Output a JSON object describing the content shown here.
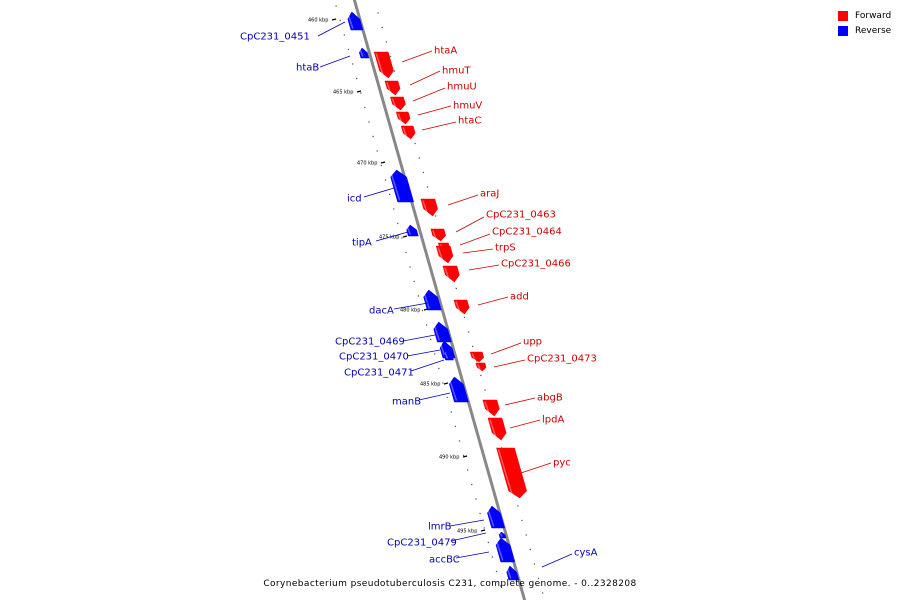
{
  "legend": [
    {
      "label": "Forward",
      "color": "#ff0000"
    },
    {
      "label": "Reverse",
      "color": "#0000ff"
    }
  ],
  "caption": "Corynebacterium pseudotuberculosis C231, complete genome. - 0..2328208",
  "colors": {
    "forward": "#ff0000",
    "reverse": "#0000ff",
    "forward_label": "#cc0000",
    "reverse_label": "#0000b3",
    "backbone": "#888888"
  },
  "ticks": [
    {
      "label": "460 kbp",
      "kbp": 460
    },
    {
      "label": "465 kbp",
      "kbp": 465
    },
    {
      "label": "470 kbp",
      "kbp": 470
    },
    {
      "label": "475 kbp",
      "kbp": 475
    },
    {
      "label": "480 kbp",
      "kbp": 480
    },
    {
      "label": "485 kbp",
      "kbp": 485
    },
    {
      "label": "490 kbp",
      "kbp": 490
    },
    {
      "label": "495 kbp",
      "kbp": 495
    }
  ],
  "genes": [
    {
      "name": "CpC231_0451",
      "strand": "reverse"
    },
    {
      "name": "htaB",
      "strand": "reverse"
    },
    {
      "name": "htaA",
      "strand": "forward"
    },
    {
      "name": "hmuT",
      "strand": "forward"
    },
    {
      "name": "hmuU",
      "strand": "forward"
    },
    {
      "name": "hmuV",
      "strand": "forward"
    },
    {
      "name": "htaC",
      "strand": "forward"
    },
    {
      "name": "icd",
      "strand": "reverse"
    },
    {
      "name": "araJ",
      "strand": "forward"
    },
    {
      "name": "CpC231_0463",
      "strand": "forward"
    },
    {
      "name": "CpC231_0464",
      "strand": "forward"
    },
    {
      "name": "tipA",
      "strand": "reverse"
    },
    {
      "name": "trpS",
      "strand": "forward"
    },
    {
      "name": "CpC231_0466",
      "strand": "forward"
    },
    {
      "name": "add",
      "strand": "forward"
    },
    {
      "name": "dacA",
      "strand": "reverse"
    },
    {
      "name": "CpC231_0469",
      "strand": "reverse"
    },
    {
      "name": "upp",
      "strand": "forward"
    },
    {
      "name": "CpC231_0470",
      "strand": "reverse"
    },
    {
      "name": "CpC231_0473",
      "strand": "forward"
    },
    {
      "name": "CpC231_0471",
      "strand": "reverse"
    },
    {
      "name": "manB",
      "strand": "reverse"
    },
    {
      "name": "abgB",
      "strand": "forward"
    },
    {
      "name": "lpdA",
      "strand": "forward"
    },
    {
      "name": "pyc",
      "strand": "forward"
    },
    {
      "name": "lmrB",
      "strand": "reverse"
    },
    {
      "name": "CpC231_0479",
      "strand": "reverse"
    },
    {
      "name": "accBC",
      "strand": "reverse"
    },
    {
      "name": "cysA",
      "strand": "reverse"
    }
  ]
}
